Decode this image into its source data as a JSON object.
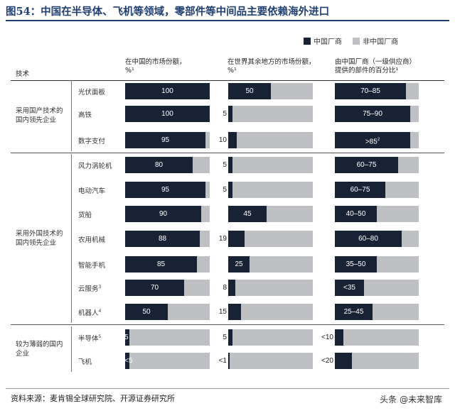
{
  "title": "图54：中国在半导体、飞机等领域，零部件等中间品主要依赖海外进口",
  "legend": [
    {
      "label": "中国厂商",
      "color": "#172235"
    },
    {
      "label": "非中国厂商",
      "color": "#bfc0c3"
    }
  ],
  "tech_header": "技术",
  "panel_headers": [
    [
      "在中国的市场份额，",
      "%¹"
    ],
    [
      "在世界其余地方的市场份额，",
      "%¹"
    ],
    [
      "由中国厂商（一级供应商）",
      "提供的部件的百分比¹"
    ]
  ],
  "groups": [
    {
      "label": "采用国产技术的国内领先企业",
      "lines": [
        "采用国产技术的",
        "国内领先企业"
      ]
    },
    {
      "label": "采用外国技术的国内领先企业",
      "lines": [
        "采用外国技术的",
        "国内领先企业"
      ]
    },
    {
      "label": "较为薄弱的国内企业",
      "lines": [
        "较为薄弱的国内",
        "企业"
      ]
    }
  ],
  "source": "资料来源：麦肯锡全球研究院、开源证券研究所",
  "watermark": "头条 @未来智库",
  "chart_data": {
    "type": "bar",
    "orientation": "horizontal",
    "stacked_to": 100,
    "series_names": [
      "中国厂商",
      "非中国厂商"
    ],
    "categories": [
      "光伏面板",
      "高铁",
      "数字支付",
      "风力涡轮机",
      "电动汽车",
      "货船",
      "农用机械",
      "智能手机",
      "云服务³",
      "机器人⁴",
      "半导体⁵",
      "飞机"
    ],
    "category_group": [
      0,
      0,
      0,
      1,
      1,
      1,
      1,
      1,
      1,
      1,
      2,
      2
    ],
    "panels": [
      {
        "name": "在中国的市场份额",
        "values": [
          100,
          100,
          95,
          80,
          95,
          90,
          88,
          85,
          70,
          50,
          5,
          5
        ],
        "labels": [
          "100",
          "100",
          "95",
          "80",
          "95",
          "90",
          "88",
          "85",
          "70",
          "50",
          "5",
          "<5"
        ]
      },
      {
        "name": "在世界其余地方的市场份额",
        "values": [
          50,
          5,
          10,
          5,
          5,
          45,
          19,
          25,
          8,
          15,
          5,
          1
        ],
        "labels": [
          "50",
          "5",
          "10",
          "5",
          "5",
          "45",
          "19",
          "25",
          "8",
          "15",
          "5",
          "<1"
        ]
      },
      {
        "name": "由中国厂商（一级供应商）提供的部件的百分比",
        "values": [
          85,
          90,
          90,
          75,
          60,
          50,
          80,
          50,
          35,
          45,
          10,
          20
        ],
        "labels": [
          "70–85",
          "75–90",
          ">85²",
          "60–75",
          "60–75",
          "40–50",
          "60–80",
          "35–50",
          "<35",
          "25–45",
          "<10",
          "<20"
        ]
      }
    ]
  }
}
